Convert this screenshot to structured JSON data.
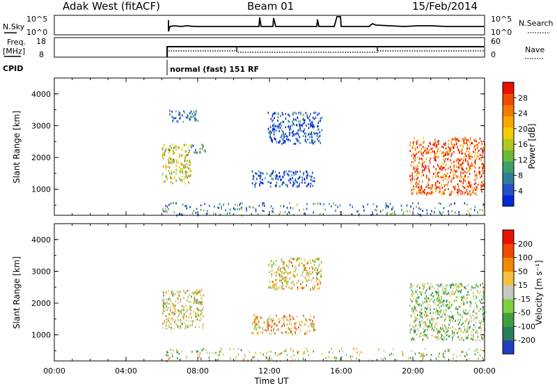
{
  "header": {
    "station": "Adak West (fitACF)",
    "beam": "Beam 01",
    "date": "15/Feb/2014"
  },
  "aux_panels": {
    "nsky_label": "N.Sky",
    "nsky_ticks": [
      "10^5",
      "10^0"
    ],
    "nsearch_label": "N.Search",
    "nsearch_ticks": [
      "10^5",
      "10^0"
    ],
    "freq_label_1": "Freq.",
    "freq_label_2": "[MHz]",
    "freq_ticks": [
      "18",
      "8"
    ],
    "nave_label": "Nave",
    "nave_ticks": [
      "60",
      "0"
    ],
    "cpid_label": "CPID",
    "cpid_text": "normal (fast) 151 RF"
  },
  "chart_data": [
    {
      "type": "heatmap",
      "name": "power",
      "ylabel": "Slant Range [km]",
      "yticks": [
        "4000",
        "3000",
        "2000",
        "1000"
      ],
      "xlim_hours": [
        0,
        24
      ],
      "ylim_km": [
        180,
        4500
      ],
      "colorbar_label": "Power [dB]",
      "colorbar_ticks": [
        "28",
        "24",
        "20",
        "16",
        "12",
        "8",
        "4"
      ],
      "colorscale": [
        "#0028d8",
        "#2a50c8",
        "#2e7e9a",
        "#3f9e6a",
        "#6ab93a",
        "#b2c820",
        "#f4ce00",
        "#f7a800",
        "#f47a00",
        "#f04a00",
        "#e81000"
      ],
      "regions": [
        {
          "t": [
            6.0,
            7.6
          ],
          "r": [
            1200,
            2450
          ],
          "level": 0.55
        },
        {
          "t": [
            7.6,
            8.4
          ],
          "r": [
            2150,
            2450
          ],
          "level": 0.3
        },
        {
          "t": [
            6.4,
            8.0
          ],
          "r": [
            3150,
            3500
          ],
          "level": 0.15
        },
        {
          "t": [
            11.9,
            14.9
          ],
          "r": [
            2450,
            3450
          ],
          "level": 0.1
        },
        {
          "t": [
            11.0,
            14.5
          ],
          "r": [
            1100,
            1600
          ],
          "level": 0.1
        },
        {
          "t": [
            19.8,
            24.0
          ],
          "r": [
            850,
            2650
          ],
          "level": 0.85
        },
        {
          "t": [
            6.0,
            24.0
          ],
          "r": [
            200,
            600
          ],
          "level": 0.25
        }
      ]
    },
    {
      "type": "heatmap",
      "name": "velocity",
      "ylabel": "Slant Range [km]",
      "yticks": [
        "4000",
        "3000",
        "2000",
        "1000"
      ],
      "xlim_hours": [
        0,
        24
      ],
      "ylim_km": [
        180,
        4500
      ],
      "colorbar_label": "Velocity [m s⁻¹]",
      "colorbar_ticks": [
        "200",
        "100",
        "50",
        "15",
        "-15",
        "-50",
        "-100",
        "-200"
      ],
      "colorscale": [
        "#2040c0",
        "#2a7e5a",
        "#3ea040",
        "#7ed040",
        "#c8c8c0",
        "#f4c040",
        "#f08a00",
        "#f04a00",
        "#e81000"
      ],
      "regions": [
        {
          "t": [
            6.0,
            8.3
          ],
          "r": [
            1200,
            2450
          ],
          "level": 0.5
        },
        {
          "t": [
            11.0,
            14.5
          ],
          "r": [
            1050,
            1650
          ],
          "level": 0.65
        },
        {
          "t": [
            11.9,
            14.9
          ],
          "r": [
            2450,
            3450
          ],
          "level": 0.55
        },
        {
          "t": [
            19.8,
            24.0
          ],
          "r": [
            850,
            2650
          ],
          "level": 0.4
        },
        {
          "t": [
            6.0,
            24.0
          ],
          "r": [
            200,
            600
          ],
          "level": 0.45
        }
      ]
    }
  ],
  "xaxis": {
    "ticks": [
      "00:00",
      "04:00",
      "08:00",
      "12:00",
      "16:00",
      "20:00",
      "00:00"
    ],
    "label": "Time UT"
  }
}
